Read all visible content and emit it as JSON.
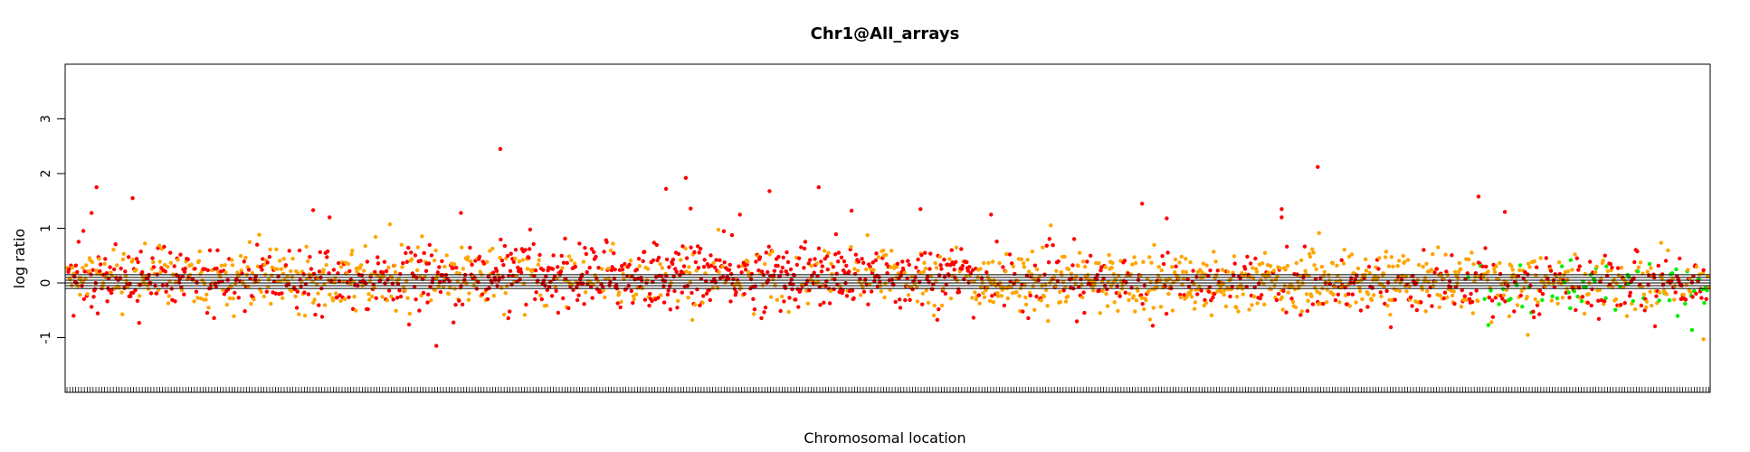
{
  "chart_data": {
    "type": "scatter",
    "title": "Chr1@All_arrays",
    "xlabel": "Chromosomal location",
    "ylabel": "log ratio",
    "ylim": [
      -2,
      4
    ],
    "yticks": [
      -1,
      0,
      1,
      2,
      3
    ],
    "ytick_labels": [
      "-1",
      "0",
      "1",
      "2",
      "3"
    ],
    "grid": false,
    "legend": "none",
    "point_count": 2400,
    "reference_lines": [
      0,
      0.05,
      0.1,
      0.15,
      -0.05,
      -0.1
    ],
    "colors": {
      "red": "#ff0000",
      "orange": "#ffa500",
      "green": "#00ee00",
      "line": "#000000"
    },
    "segments": [
      {
        "x_range": [
          0,
          0.25
        ],
        "mean": 0.12,
        "sd": 0.28,
        "mix": {
          "red": 0.5,
          "orange": 0.5,
          "green": 0
        }
      },
      {
        "x_range": [
          0.25,
          0.55
        ],
        "mean": 0.12,
        "sd": 0.3,
        "mix": {
          "red": 0.7,
          "orange": 0.3,
          "green": 0
        }
      },
      {
        "x_range": [
          0.55,
          0.85
        ],
        "mean": 0.02,
        "sd": 0.27,
        "mix": {
          "red": 0.3,
          "orange": 0.7,
          "green": 0
        }
      },
      {
        "x_range": [
          0.85,
          1.0
        ],
        "mean": -0.02,
        "sd": 0.27,
        "mix": {
          "red": 0.35,
          "orange": 0.45,
          "green": 0.2
        }
      }
    ],
    "outliers": [
      {
        "x": 0.01,
        "y": 0.95,
        "color": "red"
      },
      {
        "x": 0.015,
        "y": 1.28,
        "color": "red"
      },
      {
        "x": 0.018,
        "y": 1.75,
        "color": "red"
      },
      {
        "x": 0.004,
        "y": -0.6,
        "color": "red"
      },
      {
        "x": 0.04,
        "y": 1.55,
        "color": "red"
      },
      {
        "x": 0.044,
        "y": -0.73,
        "color": "red"
      },
      {
        "x": 0.15,
        "y": 1.33,
        "color": "red"
      },
      {
        "x": 0.16,
        "y": 1.2,
        "color": "red"
      },
      {
        "x": 0.225,
        "y": -1.15,
        "color": "red"
      },
      {
        "x": 0.24,
        "y": 1.28,
        "color": "red"
      },
      {
        "x": 0.264,
        "y": 2.45,
        "color": "red"
      },
      {
        "x": 0.365,
        "y": 1.72,
        "color": "red"
      },
      {
        "x": 0.377,
        "y": 1.92,
        "color": "red"
      },
      {
        "x": 0.38,
        "y": 1.36,
        "color": "red"
      },
      {
        "x": 0.41,
        "y": 1.25,
        "color": "red"
      },
      {
        "x": 0.428,
        "y": 1.68,
        "color": "red"
      },
      {
        "x": 0.458,
        "y": 1.75,
        "color": "red"
      },
      {
        "x": 0.478,
        "y": 1.32,
        "color": "red"
      },
      {
        "x": 0.52,
        "y": 1.35,
        "color": "red"
      },
      {
        "x": 0.563,
        "y": 1.25,
        "color": "red"
      },
      {
        "x": 0.655,
        "y": 1.45,
        "color": "red"
      },
      {
        "x": 0.67,
        "y": 1.18,
        "color": "red"
      },
      {
        "x": 0.74,
        "y": 1.35,
        "color": "red"
      },
      {
        "x": 0.74,
        "y": 1.2,
        "color": "red"
      },
      {
        "x": 0.762,
        "y": 2.12,
        "color": "red"
      },
      {
        "x": 0.86,
        "y": 1.58,
        "color": "red"
      },
      {
        "x": 0.876,
        "y": 1.3,
        "color": "red"
      },
      {
        "x": 0.997,
        "y": -1.03,
        "color": "orange"
      },
      {
        "x": 0.89,
        "y": -0.95,
        "color": "orange"
      },
      {
        "x": 0.866,
        "y": -0.77,
        "color": "green"
      },
      {
        "x": 0.99,
        "y": -0.86,
        "color": "green"
      }
    ]
  }
}
